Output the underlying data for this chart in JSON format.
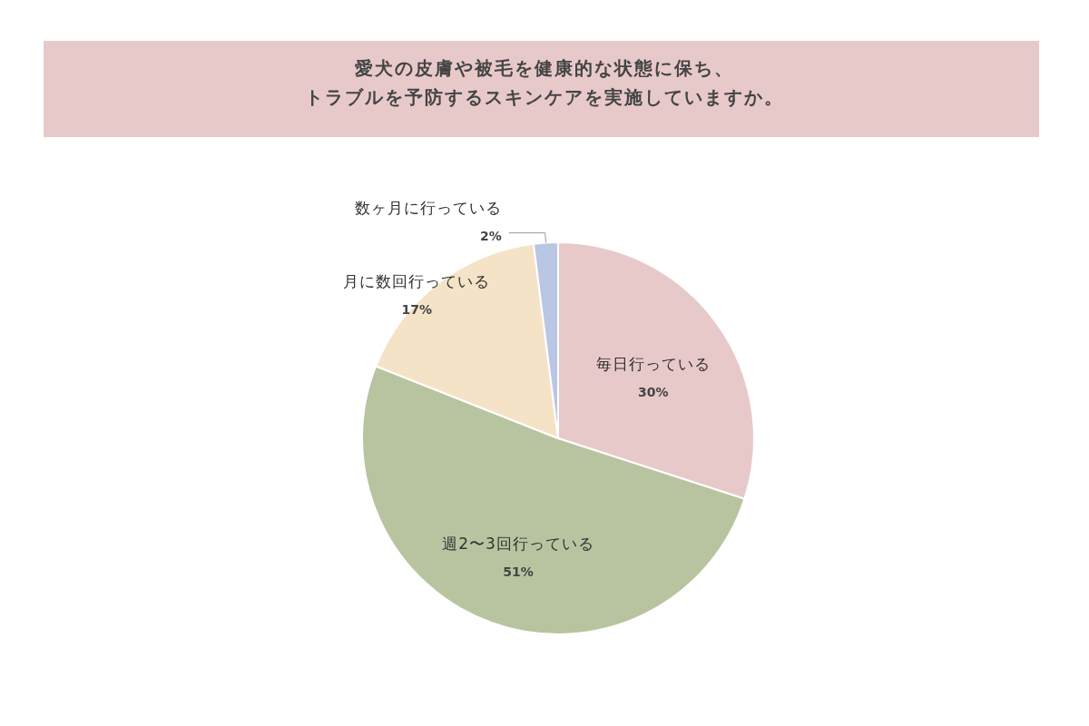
{
  "chart_data": {
    "type": "pie",
    "title": "愛犬の皮膚や被毛を健康的な状態に保ち、",
    "subtitle": "トラブルを予防するスキンケアを実施していますか。",
    "categories": [
      "毎日行っている",
      "週2〜3回行っている",
      "月に数回行っている",
      "数ヶ月に行っている"
    ],
    "values": [
      30,
      51,
      17,
      2
    ],
    "colors": [
      "#e8c9ca",
      "#b8c4a0",
      "#f5e3c7",
      "#b9c6e4"
    ],
    "value_labels": [
      "30%",
      "51%",
      "17%",
      "2%"
    ]
  }
}
